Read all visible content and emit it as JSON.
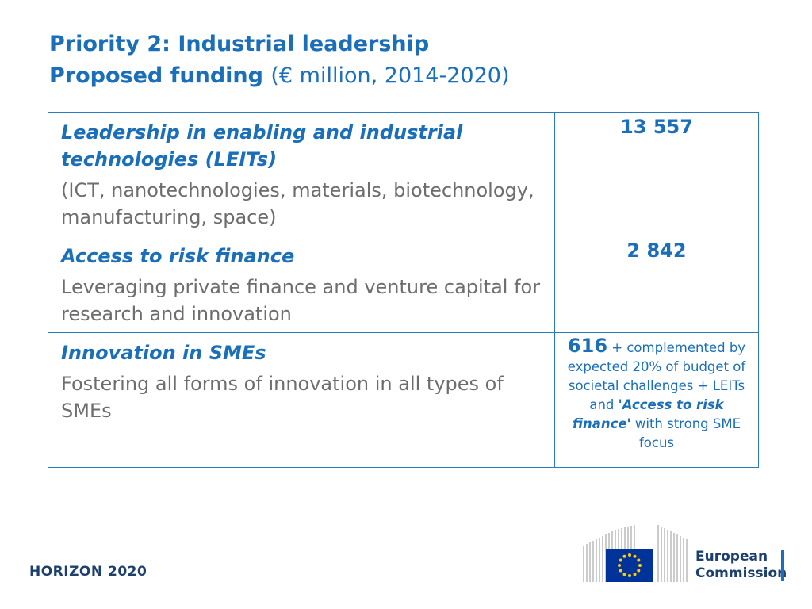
{
  "title": {
    "line1": "Priority 2: Industrial leadership",
    "line2_bold": "Proposed funding",
    "line2_normal": "(€ million, 2014-2020)"
  },
  "rows": [
    {
      "heading": "Leadership in enabling and industrial technologies (LEITs)",
      "description": "(ICT, nanotechnologies, materials, biotechnology, manufacturing, space)",
      "amount": "13 557"
    },
    {
      "heading": "Access to risk finance",
      "description": "Leveraging private finance and venture capital for research and innovation",
      "amount": "2 842"
    },
    {
      "heading": "Innovation in SMEs",
      "description": "Fostering all forms of innovation in all types of SMEs",
      "amount": "616",
      "amount_note_1": "+ complemented by expected 20% of budget of societal challenges + LEITs and",
      "amount_note_quote": "'Access to risk finance'",
      "amount_note_2": "with strong SME focus"
    }
  ],
  "footer": {
    "programme": "HORIZON 2020",
    "logo_line1": "European",
    "logo_line2": "Commission"
  }
}
